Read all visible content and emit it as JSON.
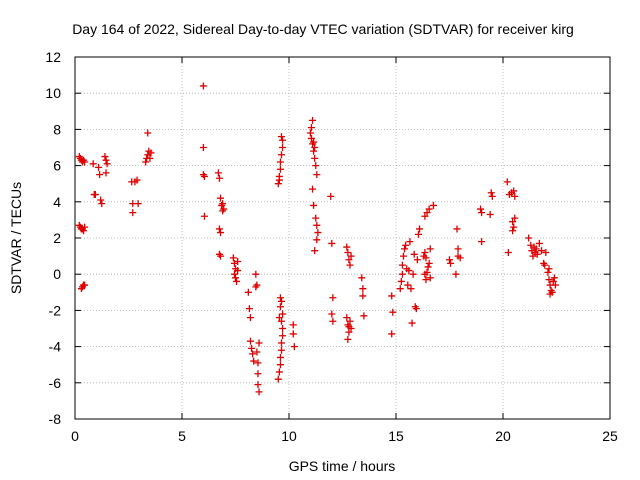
{
  "chart_data": {
    "type": "scatter",
    "title": "Day 164 of 2022, Sidereal Day-to-day VTEC variation (SDTVAR) for receiver kirg",
    "xlabel": "GPS time / hours",
    "ylabel": "SDTVAR / TECUs",
    "xlim": [
      0,
      25
    ],
    "ylim": [
      -8,
      12
    ],
    "xticks": [
      0,
      5,
      10,
      15,
      20,
      25
    ],
    "yticks": [
      -8,
      -6,
      -4,
      -2,
      0,
      2,
      4,
      6,
      8,
      10,
      12
    ],
    "grid": true,
    "marker": "plus",
    "color": "#e00000",
    "series": [
      {
        "name": "SDTVAR",
        "points": [
          [
            0.2,
            6.5
          ],
          [
            0.25,
            6.4
          ],
          [
            0.3,
            6.3
          ],
          [
            0.35,
            6.2
          ],
          [
            0.4,
            6.3
          ],
          [
            0.45,
            6.2
          ],
          [
            0.2,
            2.7
          ],
          [
            0.25,
            2.6
          ],
          [
            0.3,
            2.5
          ],
          [
            0.35,
            2.5
          ],
          [
            0.4,
            2.4
          ],
          [
            0.45,
            2.6
          ],
          [
            0.3,
            -0.8
          ],
          [
            0.35,
            -0.7
          ],
          [
            0.4,
            -0.6
          ],
          [
            0.45,
            -0.6
          ],
          [
            0.85,
            6.1
          ],
          [
            0.9,
            4.4
          ],
          [
            0.95,
            4.4
          ],
          [
            1.1,
            5.9
          ],
          [
            1.15,
            5.5
          ],
          [
            1.2,
            4.1
          ],
          [
            1.25,
            3.9
          ],
          [
            1.4,
            6.5
          ],
          [
            1.45,
            6.3
          ],
          [
            1.5,
            6.1
          ],
          [
            1.45,
            5.6
          ],
          [
            2.65,
            5.1
          ],
          [
            2.7,
            3.9
          ],
          [
            2.7,
            3.4
          ],
          [
            2.8,
            5.1
          ],
          [
            2.9,
            5.2
          ],
          [
            2.95,
            3.9
          ],
          [
            3.3,
            6.2
          ],
          [
            3.35,
            6.4
          ],
          [
            3.4,
            6.6
          ],
          [
            3.45,
            6.8
          ],
          [
            3.5,
            6.4
          ],
          [
            3.55,
            6.7
          ],
          [
            3.4,
            7.8
          ],
          [
            6.0,
            10.4
          ],
          [
            6.0,
            7.0
          ],
          [
            6.0,
            5.5
          ],
          [
            6.05,
            5.4
          ],
          [
            6.05,
            3.2
          ],
          [
            6.7,
            5.6
          ],
          [
            6.75,
            5.3
          ],
          [
            6.8,
            4.2
          ],
          [
            6.85,
            3.8
          ],
          [
            6.9,
            3.5
          ],
          [
            6.75,
            2.5
          ],
          [
            6.8,
            2.3
          ],
          [
            6.75,
            1.1
          ],
          [
            6.8,
            1.0
          ],
          [
            6.9,
            3.9
          ],
          [
            6.95,
            3.6
          ],
          [
            7.4,
            0.9
          ],
          [
            7.45,
            0.6
          ],
          [
            7.5,
            0.3
          ],
          [
            7.45,
            0.0
          ],
          [
            7.5,
            -0.2
          ],
          [
            7.55,
            -0.4
          ],
          [
            7.6,
            0.7
          ],
          [
            7.6,
            0.2
          ],
          [
            8.1,
            -1.0
          ],
          [
            8.15,
            -1.9
          ],
          [
            8.2,
            -2.4
          ],
          [
            8.2,
            -3.7
          ],
          [
            8.25,
            -4.1
          ],
          [
            8.3,
            -4.4
          ],
          [
            8.35,
            -4.8
          ],
          [
            8.45,
            -0.7
          ],
          [
            8.5,
            -0.6
          ],
          [
            8.45,
            0.0
          ],
          [
            8.5,
            -4.3
          ],
          [
            8.55,
            -5.5
          ],
          [
            8.55,
            -6.1
          ],
          [
            8.6,
            -6.5
          ],
          [
            8.6,
            -3.8
          ],
          [
            8.55,
            -4.9
          ],
          [
            9.5,
            -5.8
          ],
          [
            9.55,
            -5.4
          ],
          [
            9.6,
            -5.0
          ],
          [
            9.6,
            -4.6
          ],
          [
            9.65,
            -4.2
          ],
          [
            9.65,
            -3.8
          ],
          [
            9.7,
            -3.4
          ],
          [
            9.7,
            -3.0
          ],
          [
            9.65,
            -2.6
          ],
          [
            9.7,
            -2.2
          ],
          [
            9.6,
            -1.8
          ],
          [
            9.65,
            -1.5
          ],
          [
            9.55,
            -2.4
          ],
          [
            9.6,
            -1.3
          ],
          [
            9.5,
            5.0
          ],
          [
            9.55,
            5.4
          ],
          [
            9.6,
            5.8
          ],
          [
            9.6,
            6.2
          ],
          [
            9.65,
            6.6
          ],
          [
            9.7,
            7.0
          ],
          [
            9.7,
            7.4
          ],
          [
            9.65,
            7.6
          ],
          [
            9.55,
            5.2
          ],
          [
            10.2,
            -3.3
          ],
          [
            10.25,
            -4.0
          ],
          [
            10.2,
            -2.8
          ],
          [
            11.0,
            7.8
          ],
          [
            11.05,
            7.5
          ],
          [
            11.1,
            7.2
          ],
          [
            11.15,
            6.8
          ],
          [
            11.2,
            6.4
          ],
          [
            11.25,
            6.0
          ],
          [
            11.3,
            5.5
          ],
          [
            11.25,
            3.1
          ],
          [
            11.3,
            2.7
          ],
          [
            11.35,
            2.3
          ],
          [
            11.1,
            8.5
          ],
          [
            11.05,
            8.1
          ],
          [
            11.15,
            7.3
          ],
          [
            11.2,
            7.0
          ],
          [
            11.1,
            4.7
          ],
          [
            11.15,
            3.8
          ],
          [
            11.2,
            1.3
          ],
          [
            11.3,
            1.9
          ],
          [
            11.95,
            4.3
          ],
          [
            12.0,
            1.7
          ],
          [
            12.05,
            -1.3
          ],
          [
            12.0,
            -2.2
          ],
          [
            12.05,
            -2.6
          ],
          [
            12.7,
            1.5
          ],
          [
            12.75,
            1.2
          ],
          [
            12.8,
            0.8
          ],
          [
            12.85,
            0.5
          ],
          [
            12.9,
            1.0
          ],
          [
            12.7,
            -2.4
          ],
          [
            12.75,
            -2.8
          ],
          [
            12.8,
            -3.2
          ],
          [
            12.85,
            -2.6
          ],
          [
            12.9,
            -3.0
          ],
          [
            12.75,
            -3.6
          ],
          [
            12.8,
            -2.9
          ],
          [
            13.4,
            -0.2
          ],
          [
            13.45,
            -0.8
          ],
          [
            13.45,
            -1.2
          ],
          [
            13.5,
            -2.3
          ],
          [
            14.8,
            -1.2
          ],
          [
            14.85,
            -2.1
          ],
          [
            14.8,
            -3.3
          ],
          [
            15.2,
            -0.8
          ],
          [
            15.25,
            -0.4
          ],
          [
            15.3,
            0.0
          ],
          [
            15.3,
            0.5
          ],
          [
            15.35,
            1.0
          ],
          [
            15.4,
            1.4
          ],
          [
            15.45,
            1.6
          ],
          [
            15.5,
            0.3
          ],
          [
            15.55,
            -0.6
          ],
          [
            15.6,
            0.2
          ],
          [
            15.7,
            -0.8
          ],
          [
            15.75,
            -2.7
          ],
          [
            15.9,
            -1.8
          ],
          [
            15.95,
            -1.9
          ],
          [
            16.0,
            0.8
          ],
          [
            16.05,
            2.2
          ],
          [
            16.1,
            2.5
          ],
          [
            15.65,
            1.8
          ],
          [
            15.8,
            0.0
          ],
          [
            15.85,
            1.1
          ],
          [
            16.3,
            1.0
          ],
          [
            16.35,
            1.2
          ],
          [
            16.4,
            0.9
          ],
          [
            16.35,
            0.0
          ],
          [
            16.4,
            -0.3
          ],
          [
            16.45,
            0.1
          ],
          [
            16.5,
            0.4
          ],
          [
            16.55,
            0.6
          ],
          [
            16.6,
            1.4
          ],
          [
            16.35,
            3.2
          ],
          [
            16.45,
            3.4
          ],
          [
            16.55,
            3.6
          ],
          [
            16.75,
            3.8
          ],
          [
            16.6,
            -0.2
          ],
          [
            17.5,
            0.8
          ],
          [
            17.55,
            0.6
          ],
          [
            17.8,
            0.0
          ],
          [
            17.85,
            2.5
          ],
          [
            17.9,
            1.4
          ],
          [
            17.9,
            1.0
          ],
          [
            18.0,
            0.9
          ],
          [
            18.95,
            3.6
          ],
          [
            19.0,
            3.4
          ],
          [
            19.0,
            1.8
          ],
          [
            19.4,
            3.3
          ],
          [
            19.45,
            4.5
          ],
          [
            19.5,
            4.3
          ],
          [
            20.2,
            5.1
          ],
          [
            20.3,
            4.4
          ],
          [
            20.4,
            4.5
          ],
          [
            20.5,
            4.6
          ],
          [
            20.55,
            4.3
          ],
          [
            20.25,
            1.2
          ],
          [
            20.45,
            2.9
          ],
          [
            20.5,
            2.6
          ],
          [
            20.55,
            3.1
          ],
          [
            20.45,
            2.4
          ],
          [
            21.2,
            2.0
          ],
          [
            21.3,
            1.6
          ],
          [
            21.35,
            1.3
          ],
          [
            21.4,
            1.0
          ],
          [
            21.45,
            1.5
          ],
          [
            21.5,
            1.2
          ],
          [
            21.55,
            1.4
          ],
          [
            21.6,
            1.1
          ],
          [
            21.7,
            1.7
          ],
          [
            21.8,
            1.3
          ],
          [
            21.9,
            0.6
          ],
          [
            21.95,
            0.5
          ],
          [
            22.0,
            1.2
          ],
          [
            22.1,
            0.1
          ],
          [
            22.15,
            -0.3
          ],
          [
            22.2,
            -0.6
          ],
          [
            22.25,
            -0.9
          ],
          [
            22.3,
            -1.0
          ],
          [
            22.35,
            -0.4
          ],
          [
            22.4,
            -0.2
          ],
          [
            22.45,
            -0.6
          ],
          [
            22.2,
            -1.1
          ],
          [
            22.15,
            0.3
          ]
        ]
      }
    ]
  }
}
